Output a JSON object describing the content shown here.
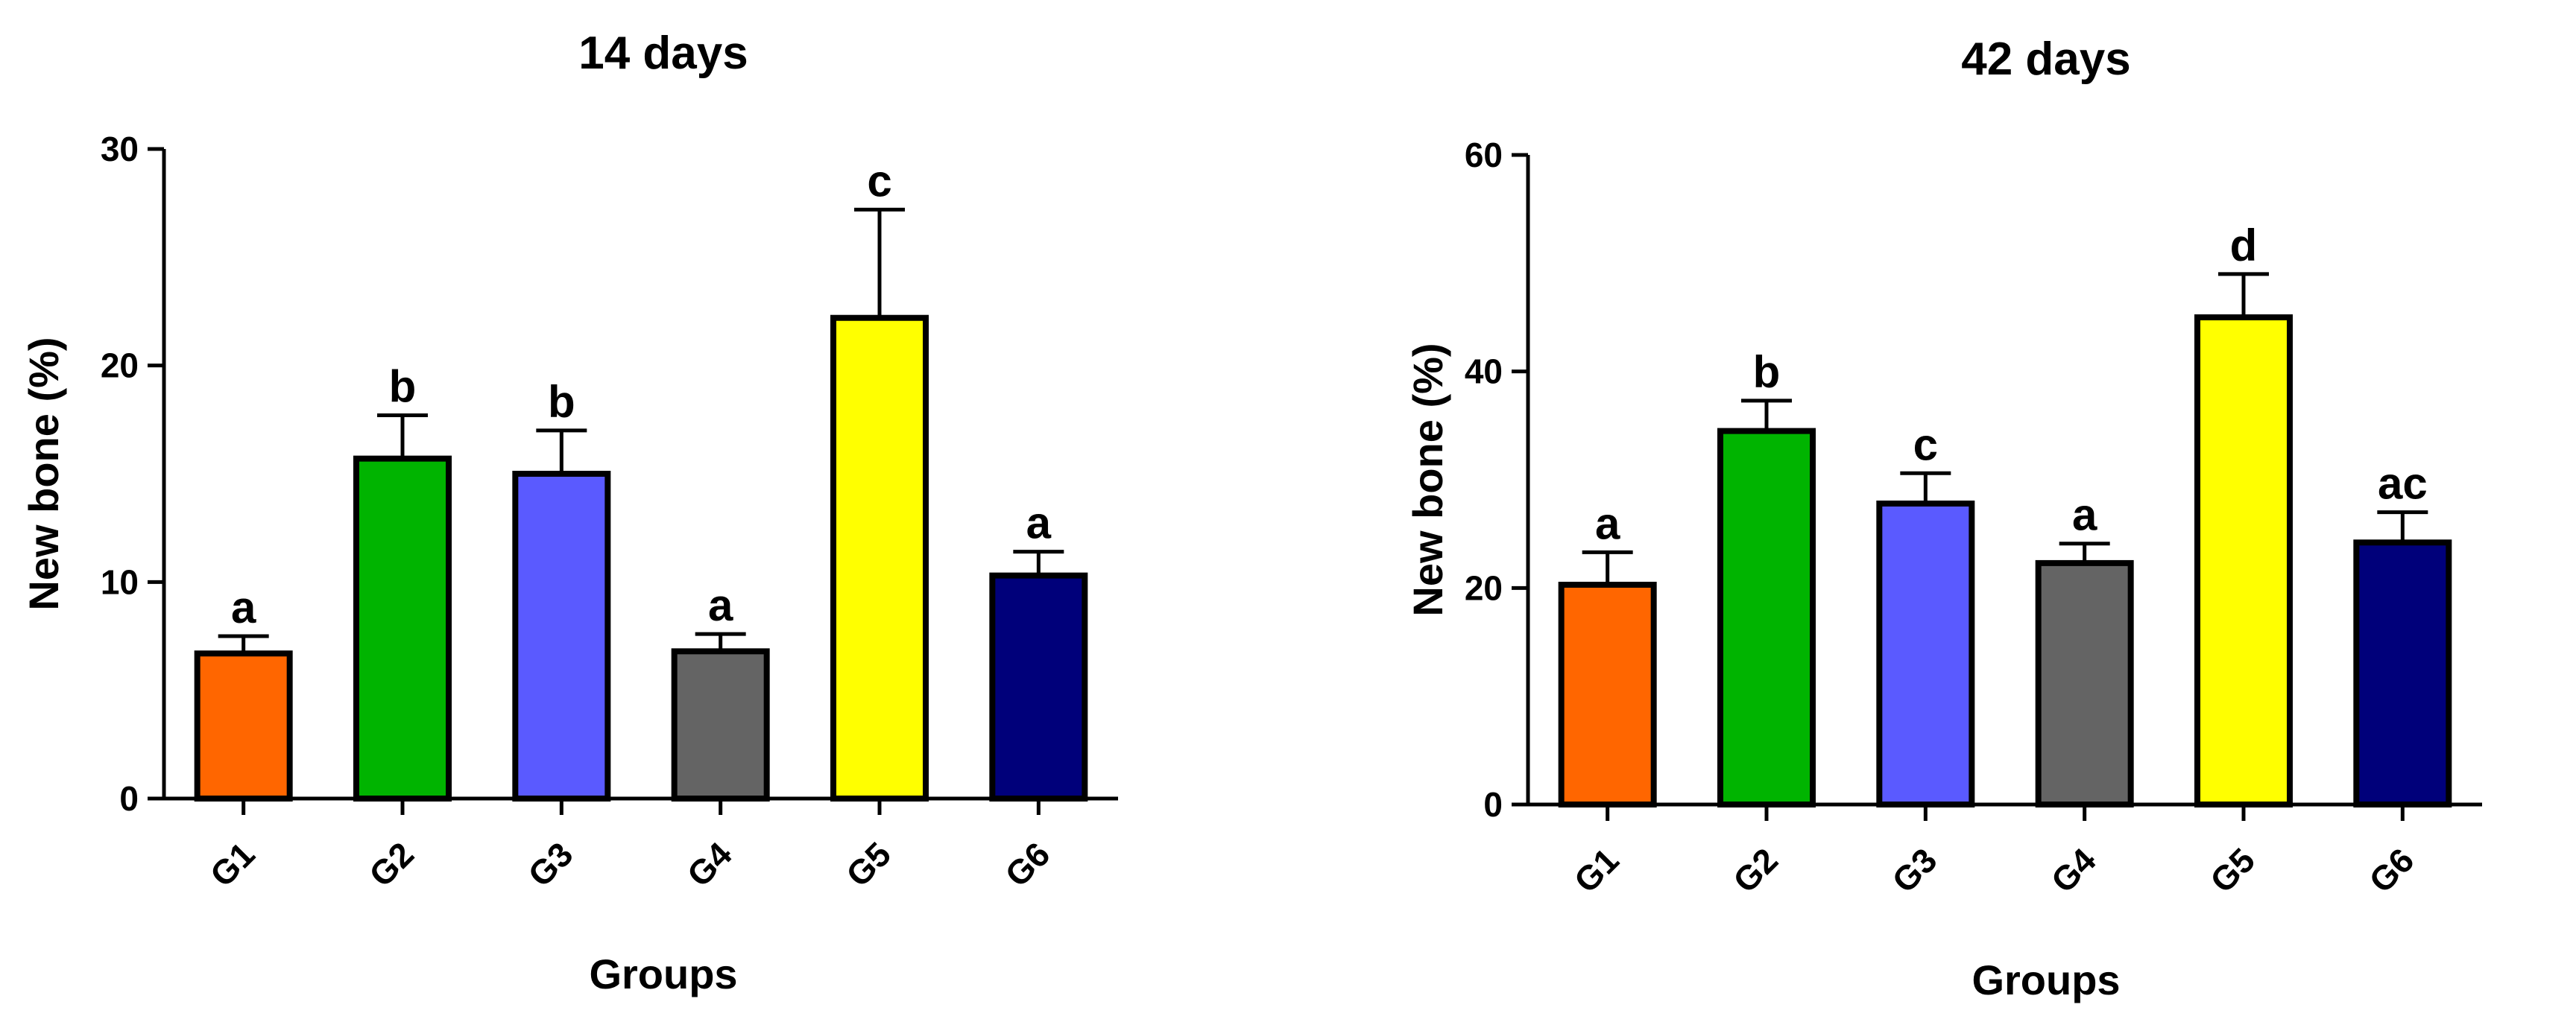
{
  "chart_data": [
    {
      "type": "bar",
      "title": "14 days",
      "xlabel": "Groups",
      "ylabel": "New bone (%)",
      "ylim": [
        0,
        30
      ],
      "yticks": [
        0,
        10,
        20,
        30
      ],
      "categories": [
        "G1",
        "G2",
        "G3",
        "G4",
        "G5",
        "G6"
      ],
      "values": [
        6.7,
        15.7,
        15.0,
        6.8,
        22.2,
        10.3
      ],
      "errors": [
        0.8,
        2.0,
        2.0,
        0.8,
        5.0,
        1.1
      ],
      "letters": [
        "a",
        "b",
        "b",
        "a",
        "c",
        "a"
      ],
      "colors": [
        "#FF6600",
        "#00B400",
        "#5A5AFF",
        "#646464",
        "#FFFF00",
        "#00007A"
      ],
      "grid": false,
      "legend": "none"
    },
    {
      "type": "bar",
      "title": "42 days",
      "xlabel": "Groups",
      "ylabel": "New bone (%)",
      "ylim": [
        0,
        60
      ],
      "yticks": [
        0,
        20,
        40,
        60
      ],
      "categories": [
        "G1",
        "G2",
        "G3",
        "G4",
        "G5",
        "G6"
      ],
      "values": [
        20.3,
        34.5,
        27.8,
        22.3,
        45.0,
        24.2
      ],
      "errors": [
        3.0,
        2.8,
        2.8,
        1.8,
        4.0,
        2.8
      ],
      "letters": [
        "a",
        "b",
        "c",
        "a",
        "d",
        "ac"
      ],
      "colors": [
        "#FF6600",
        "#00B400",
        "#5A5AFF",
        "#646464",
        "#FFFF00",
        "#00007A"
      ],
      "grid": false,
      "legend": "none"
    }
  ]
}
